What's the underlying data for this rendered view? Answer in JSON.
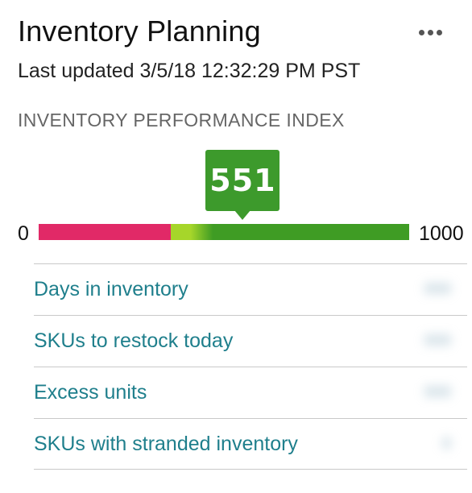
{
  "card": {
    "title": "Inventory Planning",
    "last_updated": "Last updated 3/5/18 12:32:29 PM PST",
    "more_icon": "more-horizontal-icon"
  },
  "performance": {
    "heading": "INVENTORY PERFORMANCE INDEX",
    "score": "551",
    "scale_min": "0",
    "scale_max": "1000",
    "score_fraction": 0.551,
    "colors": {
      "poor": "#e12967",
      "fair": "#a6d62a",
      "good": "#3f9c24",
      "badge": "#3d9a2c"
    }
  },
  "metrics": [
    {
      "label": "Days in inventory",
      "value": "000"
    },
    {
      "label": "SKUs to restock today",
      "value": "000"
    },
    {
      "label": "Excess units",
      "value": "000"
    },
    {
      "label": "SKUs with stranded inventory",
      "value": "0"
    }
  ]
}
